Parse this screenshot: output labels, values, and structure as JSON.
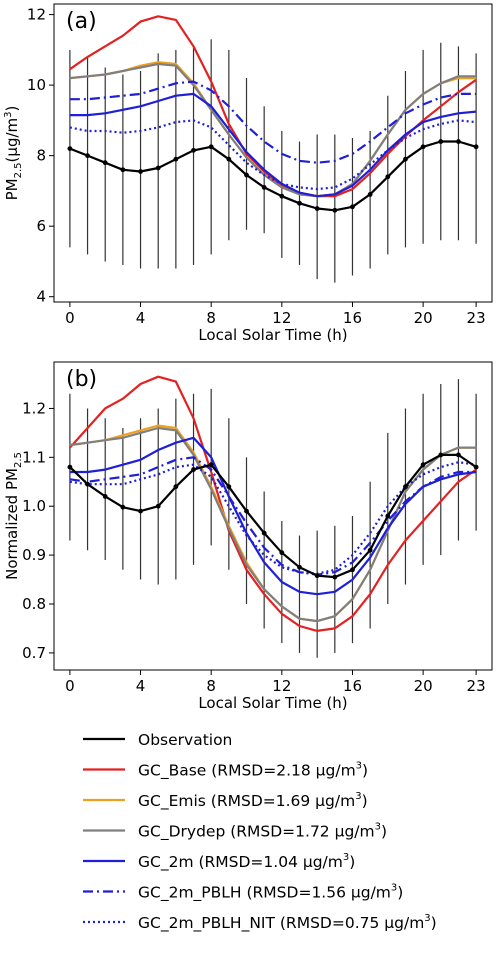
{
  "chart_data": [
    {
      "type": "line",
      "panel_label": "(a)",
      "xlabel": "Local Solar Time (h)",
      "ylabel": "PM",
      "ylabel_sub": "2.5",
      "ylabel_unit": "(μg/m",
      "ylabel_sup": "3",
      "ylabel_close": ")",
      "xlim": [
        -0.9,
        23.9
      ],
      "ylim": [
        3.85,
        12.3
      ],
      "xticks": [
        0,
        4,
        8,
        12,
        16,
        20,
        23
      ],
      "yticks": [
        4,
        6,
        8,
        10,
        12
      ],
      "x": [
        0,
        1,
        2,
        3,
        4,
        5,
        6,
        7,
        8,
        9,
        10,
        11,
        12,
        13,
        14,
        15,
        16,
        17,
        18,
        19,
        20,
        21,
        22,
        23
      ],
      "error_bars": {
        "low": [
          5.4,
          5.2,
          5.0,
          4.9,
          4.8,
          4.8,
          4.8,
          4.9,
          5.2,
          5.6,
          5.9,
          5.8,
          5.1,
          4.9,
          4.5,
          4.4,
          4.6,
          4.8,
          5.2,
          5.4,
          5.5,
          5.6,
          5.6,
          5.5
        ],
        "high": [
          11.0,
          10.8,
          10.5,
          10.3,
          10.4,
          10.9,
          11.0,
          11.1,
          11.3,
          11.0,
          10.2,
          9.4,
          8.7,
          8.4,
          8.6,
          8.6,
          8.5,
          8.7,
          9.7,
          10.4,
          11.0,
          11.2,
          11.1,
          10.9
        ]
      },
      "series": [
        {
          "name": "Observation",
          "color": "#000000",
          "dash": "solid",
          "markers": true,
          "values": [
            8.2,
            8.0,
            7.8,
            7.6,
            7.55,
            7.65,
            7.9,
            8.15,
            8.25,
            7.9,
            7.45,
            7.1,
            6.85,
            6.65,
            6.5,
            6.45,
            6.55,
            6.9,
            7.4,
            7.9,
            8.25,
            8.4,
            8.4,
            8.25
          ]
        },
        {
          "name": "GC_Base",
          "color": "#e32121",
          "dash": "solid",
          "markers": false,
          "values": [
            10.45,
            10.8,
            11.1,
            11.4,
            11.8,
            11.95,
            11.85,
            11.1,
            10.1,
            8.9,
            8.05,
            7.55,
            7.15,
            6.95,
            6.85,
            6.85,
            7.05,
            7.5,
            8.05,
            8.55,
            9.0,
            9.4,
            9.8,
            10.15
          ]
        },
        {
          "name": "GC_Emis",
          "color": "#f0a020",
          "dash": "solid",
          "markers": false,
          "values": [
            10.2,
            10.25,
            10.3,
            10.4,
            10.55,
            10.65,
            10.6,
            10.05,
            9.3,
            8.6,
            7.95,
            7.45,
            7.1,
            6.9,
            6.85,
            6.9,
            7.2,
            7.85,
            8.6,
            9.3,
            9.75,
            10.05,
            10.2,
            10.2
          ]
        },
        {
          "name": "GC_Drydep",
          "color": "#7f7f7f",
          "dash": "solid",
          "markers": false,
          "values": [
            10.2,
            10.25,
            10.3,
            10.4,
            10.5,
            10.6,
            10.55,
            10.0,
            9.3,
            8.6,
            7.95,
            7.45,
            7.1,
            6.9,
            6.85,
            6.9,
            7.2,
            7.85,
            8.6,
            9.3,
            9.75,
            10.05,
            10.25,
            10.25
          ]
        },
        {
          "name": "GC_2m",
          "color": "#1f1fd8",
          "dash": "solid",
          "markers": false,
          "values": [
            9.15,
            9.15,
            9.2,
            9.3,
            9.4,
            9.55,
            9.7,
            9.75,
            9.4,
            8.75,
            8.1,
            7.6,
            7.2,
            6.95,
            6.85,
            6.9,
            7.15,
            7.6,
            8.15,
            8.6,
            8.95,
            9.1,
            9.2,
            9.25
          ]
        },
        {
          "name": "GC_2m_PBLH",
          "color": "#1f1fd8",
          "dash": "dashdot",
          "markers": false,
          "values": [
            9.6,
            9.6,
            9.65,
            9.7,
            9.75,
            9.9,
            10.05,
            10.1,
            9.85,
            9.4,
            8.85,
            8.4,
            8.05,
            7.85,
            7.8,
            7.85,
            8.05,
            8.4,
            8.8,
            9.2,
            9.45,
            9.65,
            9.75,
            9.75
          ]
        },
        {
          "name": "GC_2m_PBLH_NIT",
          "color": "#1f1fd8",
          "dash": "dotted",
          "markers": false,
          "values": [
            8.8,
            8.7,
            8.7,
            8.65,
            8.7,
            8.8,
            8.95,
            9.0,
            8.8,
            8.3,
            7.8,
            7.45,
            7.2,
            7.1,
            7.05,
            7.1,
            7.35,
            7.75,
            8.15,
            8.5,
            8.75,
            8.9,
            9.0,
            8.95
          ]
        }
      ]
    },
    {
      "type": "line",
      "panel_label": "(b)",
      "xlabel": "Local Solar Time (h)",
      "ylabel": "Normalized PM",
      "ylabel_sub": "2.5",
      "xlim": [
        -0.9,
        23.9
      ],
      "ylim": [
        0.665,
        1.295
      ],
      "xticks": [
        0,
        4,
        8,
        12,
        16,
        20,
        23
      ],
      "yticks": [
        0.7,
        0.8,
        0.9,
        1.0,
        1.1,
        1.2
      ],
      "yticklabels": [
        "0.7",
        "0.8",
        "0.9",
        "1.0",
        "1.1",
        "1.2"
      ],
      "x": [
        0,
        1,
        2,
        3,
        4,
        5,
        6,
        7,
        8,
        9,
        10,
        11,
        12,
        13,
        14,
        15,
        16,
        17,
        18,
        19,
        20,
        21,
        22,
        23
      ],
      "error_bars": {
        "low": [
          0.93,
          0.91,
          0.89,
          0.87,
          0.85,
          0.84,
          0.85,
          0.88,
          0.92,
          0.87,
          0.8,
          0.75,
          0.72,
          0.7,
          0.69,
          0.7,
          0.72,
          0.75,
          0.8,
          0.84,
          0.88,
          0.9,
          0.93,
          0.95
        ],
        "high": [
          1.23,
          1.2,
          1.18,
          1.16,
          1.18,
          1.2,
          1.22,
          1.23,
          1.24,
          1.18,
          1.1,
          1.03,
          0.97,
          0.94,
          0.95,
          0.96,
          0.98,
          1.05,
          1.15,
          1.2,
          1.23,
          1.25,
          1.26,
          1.23
        ]
      },
      "series": [
        {
          "name": "Observation",
          "color": "#000000",
          "dash": "solid",
          "markers": true,
          "values": [
            1.08,
            1.045,
            1.02,
            0.998,
            0.99,
            1.0,
            1.04,
            1.075,
            1.085,
            1.04,
            0.99,
            0.945,
            0.905,
            0.875,
            0.858,
            0.855,
            0.87,
            0.91,
            0.98,
            1.04,
            1.085,
            1.105,
            1.105,
            1.08
          ]
        },
        {
          "name": "GC_Base",
          "color": "#e32121",
          "dash": "solid",
          "markers": false,
          "values": [
            1.12,
            1.16,
            1.2,
            1.22,
            1.25,
            1.265,
            1.255,
            1.18,
            1.07,
            0.95,
            0.87,
            0.82,
            0.78,
            0.755,
            0.745,
            0.75,
            0.775,
            0.82,
            0.88,
            0.93,
            0.97,
            1.01,
            1.05,
            1.075
          ]
        },
        {
          "name": "GC_Emis",
          "color": "#f0a020",
          "dash": "solid",
          "markers": false,
          "values": [
            1.125,
            1.13,
            1.135,
            1.145,
            1.155,
            1.165,
            1.16,
            1.11,
            1.04,
            0.96,
            0.885,
            0.83,
            0.795,
            0.77,
            0.765,
            0.775,
            0.81,
            0.87,
            0.95,
            1.03,
            1.075,
            1.105,
            1.12,
            1.12
          ]
        },
        {
          "name": "GC_Drydep",
          "color": "#7f7f7f",
          "dash": "solid",
          "markers": false,
          "values": [
            1.125,
            1.13,
            1.135,
            1.14,
            1.15,
            1.16,
            1.155,
            1.105,
            1.035,
            0.955,
            0.88,
            0.83,
            0.795,
            0.77,
            0.765,
            0.775,
            0.81,
            0.87,
            0.95,
            1.03,
            1.075,
            1.105,
            1.12,
            1.12
          ]
        },
        {
          "name": "GC_2m",
          "color": "#1f1fd8",
          "dash": "solid",
          "markers": false,
          "values": [
            1.07,
            1.07,
            1.075,
            1.085,
            1.095,
            1.115,
            1.13,
            1.14,
            1.1,
            1.02,
            0.945,
            0.885,
            0.845,
            0.825,
            0.82,
            0.825,
            0.85,
            0.895,
            0.955,
            1.005,
            1.04,
            1.055,
            1.065,
            1.07
          ]
        },
        {
          "name": "GC_2m_PBLH",
          "color": "#1f1fd8",
          "dash": "dashdot",
          "markers": false,
          "values": [
            1.055,
            1.05,
            1.055,
            1.06,
            1.065,
            1.08,
            1.095,
            1.1,
            1.075,
            1.02,
            0.965,
            0.915,
            0.88,
            0.865,
            0.86,
            0.865,
            0.885,
            0.925,
            0.97,
            1.01,
            1.04,
            1.06,
            1.07,
            1.07
          ]
        },
        {
          "name": "GC_2m_PBLH_NIT",
          "color": "#1f1fd8",
          "dash": "dotted",
          "markers": false,
          "values": [
            1.05,
            1.045,
            1.045,
            1.045,
            1.055,
            1.065,
            1.08,
            1.085,
            1.06,
            1.0,
            0.94,
            0.9,
            0.875,
            0.865,
            0.862,
            0.87,
            0.9,
            0.945,
            1.0,
            1.04,
            1.065,
            1.08,
            1.09,
            1.085
          ]
        }
      ]
    }
  ],
  "legend": {
    "placement": "bottom",
    "entries": [
      {
        "label": "Observation",
        "color": "#000000",
        "dash": "solid"
      },
      {
        "label": "GC_Base (RMSD=2.18 μg/m",
        "sup": "3",
        "close": ")",
        "color": "#e32121",
        "dash": "solid"
      },
      {
        "label": "GC_Emis (RMSD=1.69 μg/m",
        "sup": "3",
        "close": ")",
        "color": "#f0a020",
        "dash": "solid"
      },
      {
        "label": "GC_Drydep (RMSD=1.72 μg/m",
        "sup": "3",
        "close": ")",
        "color": "#7f7f7f",
        "dash": "solid"
      },
      {
        "label": "GC_2m (RMSD=1.04 μg/m",
        "sup": "3",
        "close": ")",
        "color": "#1f1fd8",
        "dash": "solid"
      },
      {
        "label": "GC_2m_PBLH (RMSD=1.56 μg/m",
        "sup": "3",
        "close": ")",
        "color": "#1f1fd8",
        "dash": "dashdot"
      },
      {
        "label": "GC_2m_PBLH_NIT (RMSD=0.75 μg/m",
        "sup": "3",
        "close": ")",
        "color": "#1f1fd8",
        "dash": "dotted"
      }
    ]
  }
}
